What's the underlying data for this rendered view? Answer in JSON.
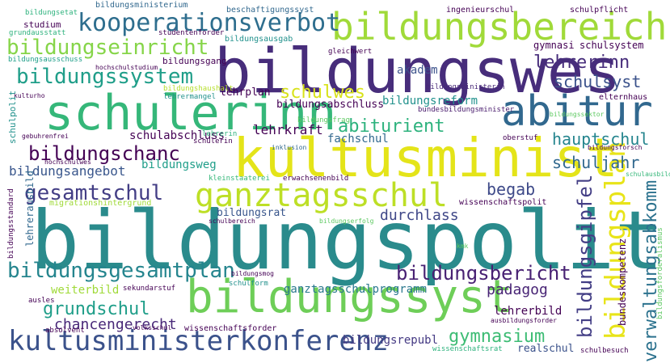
{
  "words": [
    {
      "text": "bildungspolit",
      "color": "#2a8b8c"
    },
    {
      "text": "bildungswes",
      "color": "#472d7b"
    },
    {
      "text": "kultusminist",
      "color": "#e4e419"
    },
    {
      "text": "schulerinn",
      "color": "#35b779"
    },
    {
      "text": "bildungsbereich",
      "color": "#a0da39"
    },
    {
      "text": "abitur",
      "color": "#31688e"
    },
    {
      "text": "bildungssyst",
      "color": "#6ece58"
    },
    {
      "text": "ganztagsschul",
      "color": "#bddf26"
    },
    {
      "text": "kultusministerkonferenz",
      "color": "#3b528b"
    },
    {
      "text": "kooperationsverbot",
      "color": "#2e6e8e"
    },
    {
      "text": "bildungseinricht",
      "color": "#86d549"
    },
    {
      "text": "bildungssystem",
      "color": "#1f9e89"
    },
    {
      "text": "bildungsgesamtplan",
      "color": "#25858e"
    },
    {
      "text": "gesamtschul",
      "color": "#433e85"
    },
    {
      "text": "bildungschanc",
      "color": "#440154"
    },
    {
      "text": "bildungsbericht",
      "color": "#482173"
    },
    {
      "text": "verwaltungsabkomm",
      "color": "#2c728e"
    },
    {
      "text": "bildungsplan",
      "color": "#e8e419"
    },
    {
      "text": "bildungsgipfel",
      "color": "#433e85"
    },
    {
      "text": "schulwes",
      "color": "#d8e219"
    },
    {
      "text": "abiturient",
      "color": "#2db27d"
    },
    {
      "text": "lehrerinn",
      "color": "#472d7b"
    },
    {
      "text": "schulsyst",
      "color": "#3b528b"
    },
    {
      "text": "hauptschul",
      "color": "#25858e"
    },
    {
      "text": "schuljahr",
      "color": "#31688e"
    },
    {
      "text": "grundschul",
      "color": "#1f9e89"
    },
    {
      "text": "gymnasium",
      "color": "#3dbc74"
    },
    {
      "text": "begab",
      "color": "#3e4a89"
    },
    {
      "text": "durchlass",
      "color": "#3f4788"
    },
    {
      "text": "padagog",
      "color": "#482475"
    },
    {
      "text": "chancengerecht",
      "color": "#482878"
    },
    {
      "text": "bildungsangebot",
      "color": "#39568c"
    },
    {
      "text": "lehrkraft",
      "color": "#440154"
    },
    {
      "text": "schulabschluss",
      "color": "#440154"
    },
    {
      "text": "bildungsweg",
      "color": "#1f9e89"
    },
    {
      "text": "bildungsreform",
      "color": "#21918c"
    },
    {
      "text": "akadem",
      "color": "#3b528b"
    },
    {
      "text": "fachschul",
      "color": "#31688e"
    },
    {
      "text": "lehrplan",
      "color": "#440154"
    },
    {
      "text": "bildungsabschluss",
      "color": "#440154"
    },
    {
      "text": "ganztagsschulprogramm",
      "color": "#2a788e"
    },
    {
      "text": "bildungsrepubl",
      "color": "#443983"
    },
    {
      "text": "lehrerbild",
      "color": "#440154"
    },
    {
      "text": "weiterbild",
      "color": "#a0da39"
    },
    {
      "text": "realschul",
      "color": "#3b528b"
    },
    {
      "text": "bildungsrat",
      "color": "#39568c"
    },
    {
      "text": "bundeskompetenz",
      "color": "#440154"
    },
    {
      "text": "studium",
      "color": "#440154"
    },
    {
      "text": "gymnasi",
      "color": "#440154"
    },
    {
      "text": "schulsystem",
      "color": "#440154"
    },
    {
      "text": "bildungsgang",
      "color": "#440154"
    },
    {
      "text": "bildungsministerium",
      "color": "#31688e"
    },
    {
      "text": "beschaftigungssyst",
      "color": "#31688e"
    },
    {
      "text": "ingenieurschul",
      "color": "#440154"
    },
    {
      "text": "schulpflicht",
      "color": "#440154"
    },
    {
      "text": "elternhaus",
      "color": "#440154"
    },
    {
      "text": "bildungsetat",
      "color": "#2db27d"
    },
    {
      "text": "grundausstatt",
      "color": "#2db27d"
    },
    {
      "text": "studentenforder",
      "color": "#440154"
    },
    {
      "text": "bildungsausgab",
      "color": "#21918c"
    },
    {
      "text": "bildungsausschuss",
      "color": "#1f9e89"
    },
    {
      "text": "hochschulstudium",
      "color": "#440154"
    },
    {
      "text": "bildungshaushalt",
      "color": "#b5de2b"
    },
    {
      "text": "lehrermangel",
      "color": "#21918c"
    },
    {
      "text": "kulturho",
      "color": "#440154"
    },
    {
      "text": "gleichwert",
      "color": "#440154"
    },
    {
      "text": "bildungsministerin",
      "color": "#482878"
    },
    {
      "text": "bundesbildungsminister",
      "color": "#481a6c"
    },
    {
      "text": "bildungssektor",
      "color": "#5ec962"
    },
    {
      "text": "bildungsfrag",
      "color": "#5ec962"
    },
    {
      "text": "schulpolit",
      "color": "#21918c"
    },
    {
      "text": "gebuhrenfrei",
      "color": "#440154"
    },
    {
      "text": "lehrerin",
      "color": "#2db27d"
    },
    {
      "text": "schulerin",
      "color": "#440154"
    },
    {
      "text": "inklusion",
      "color": "#31688e"
    },
    {
      "text": "oberstuf",
      "color": "#440154"
    },
    {
      "text": "bildungsforsch",
      "color": "#440154"
    },
    {
      "text": "schulausbild",
      "color": "#35b779"
    },
    {
      "text": "hochschulwes",
      "color": "#440154"
    },
    {
      "text": "kleinstaaterei",
      "color": "#35b779"
    },
    {
      "text": "erwachsenenbild",
      "color": "#440154"
    },
    {
      "text": "lehrerausbild",
      "color": "#31688e"
    },
    {
      "text": "migrationshintergrund",
      "color": "#a0da39"
    },
    {
      "text": "wissenschaftspolit",
      "color": "#440154"
    },
    {
      "text": "bildungsstandard",
      "color": "#440154"
    },
    {
      "text": "schulbereich",
      "color": "#440154"
    },
    {
      "text": "bildungserfolg",
      "color": "#5ec962"
    },
    {
      "text": "bildungsmog",
      "color": "#440154"
    },
    {
      "text": "kmk",
      "color": "#5ec962"
    },
    {
      "text": "bildungsforderalismus",
      "color": "#5ec962"
    },
    {
      "text": "sekundarstuf",
      "color": "#440154"
    },
    {
      "text": "schulform",
      "color": "#21918c"
    },
    {
      "text": "ausles",
      "color": "#440154"
    },
    {
      "text": "volksschul",
      "color": "#440154"
    },
    {
      "text": "absolvent",
      "color": "#440154"
    },
    {
      "text": "wissenschaftsforder",
      "color": "#440154"
    },
    {
      "text": "ausbildungsforder",
      "color": "#440154"
    },
    {
      "text": "wissenschaftsrat",
      "color": "#2db27d"
    },
    {
      "text": "schulbesuch",
      "color": "#440154"
    }
  ]
}
